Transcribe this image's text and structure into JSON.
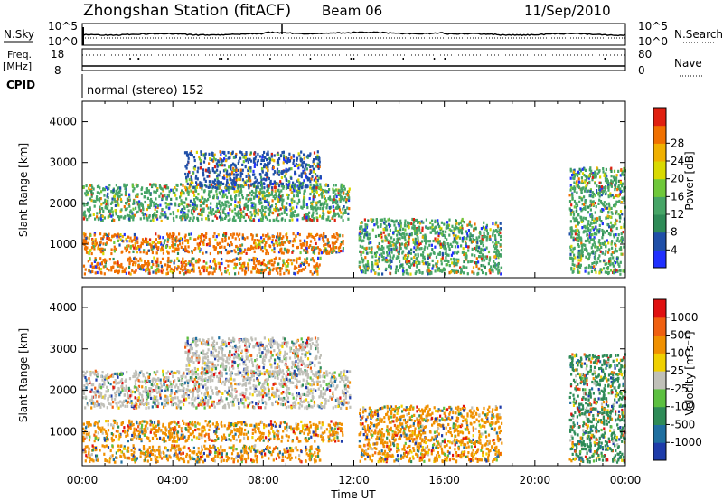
{
  "header": {
    "station": "Zhongshan Station (fitACF)",
    "beam": "Beam 06",
    "date": "11/Sep/2010"
  },
  "top_panels": {
    "nsky_label": "N.Sky",
    "nsky_ticks": [
      "10^5",
      "10^0"
    ],
    "nsearch_label": "N.Search",
    "nsearch_ticks": [
      "10^5",
      "10^0"
    ],
    "freq_label": "Freq.",
    "freq_unit": "[MHz]",
    "freq_ticks": [
      "18",
      "8"
    ],
    "nave_label": "Nave",
    "nave_ticks": [
      "80",
      "0"
    ],
    "cpid_label": "CPID",
    "cpid_value": "normal (stereo) 152"
  },
  "chart_data": [
    {
      "type": "heatmap",
      "name": "power",
      "ylabel": "Slant Range [km]",
      "ylim": [
        180,
        4500
      ],
      "yticks": [
        "1000",
        "2000",
        "3000",
        "4000"
      ],
      "xlim": [
        0,
        24
      ],
      "colorbar_label": "Power [dB]",
      "colorbar_ticks": [
        "4",
        "8",
        "12",
        "16",
        "20",
        "24",
        "28"
      ],
      "colorbar_colors": [
        "#2030ff",
        "#1f4fa8",
        "#2e8b57",
        "#46a566",
        "#6fc83a",
        "#d9d900",
        "#f0b000",
        "#f07000",
        "#e02010"
      ],
      "features": [
        {
          "label": "band-upper",
          "t": [
            0,
            11.8
          ],
          "r": [
            1600,
            2500
          ],
          "dominant": "#46a566"
        },
        {
          "label": "band-mid",
          "t": [
            0,
            11.5
          ],
          "r": [
            800,
            1300
          ],
          "dominant": "#f07000"
        },
        {
          "label": "band-lower",
          "t": [
            0,
            10.5
          ],
          "r": [
            300,
            700
          ],
          "dominant": "#f07000"
        },
        {
          "label": "patch-high",
          "t": [
            4.5,
            10.5
          ],
          "r": [
            2400,
            3300
          ],
          "dominant": "#1f4fa8"
        },
        {
          "label": "afternoon",
          "t": [
            12.2,
            18.5
          ],
          "r": [
            300,
            1650
          ],
          "dominant": "#46a566"
        },
        {
          "label": "evening",
          "t": [
            21.5,
            24
          ],
          "r": [
            300,
            2900
          ],
          "dominant": "#46a566"
        }
      ]
    },
    {
      "type": "heatmap",
      "name": "velocity",
      "ylabel": "Slant Range [km]",
      "ylim": [
        180,
        4500
      ],
      "yticks": [
        "1000",
        "2000",
        "3000",
        "4000"
      ],
      "xlim": [
        0,
        24
      ],
      "xticks": [
        "00:00",
        "04:00",
        "08:00",
        "12:00",
        "16:00",
        "20:00",
        "00:00"
      ],
      "xlabel": "Time UT",
      "colorbar_label": "Velocity [m s⁻¹]",
      "colorbar_ticks": [
        "1000",
        "500",
        "100",
        "25",
        "-25",
        "-100",
        "-500",
        "-1000"
      ],
      "colorbar_colors": [
        "#1e3caa",
        "#1f6fa0",
        "#2e8b57",
        "#5cc040",
        "#c0c0b8",
        "#f0d000",
        "#f09000",
        "#f06010",
        "#e01010"
      ],
      "features": [
        {
          "label": "band-upper",
          "t": [
            0,
            11.8
          ],
          "r": [
            1600,
            2500
          ],
          "dominant": "#c0c0b8"
        },
        {
          "label": "band-mid",
          "t": [
            0,
            11.5
          ],
          "r": [
            800,
            1300
          ],
          "dominant": "#f09000"
        },
        {
          "label": "band-lower",
          "t": [
            0,
            10.5
          ],
          "r": [
            300,
            700
          ],
          "dominant": "#f09000"
        },
        {
          "label": "patch-high",
          "t": [
            4.5,
            10.5
          ],
          "r": [
            2400,
            3300
          ],
          "dominant": "#c0c0b8"
        },
        {
          "label": "afternoon",
          "t": [
            12.2,
            18.5
          ],
          "r": [
            300,
            1650
          ],
          "dominant": "#f09000"
        },
        {
          "label": "evening",
          "t": [
            21.5,
            24
          ],
          "r": [
            300,
            2900
          ],
          "dominant": "#2e8b57"
        }
      ]
    }
  ]
}
